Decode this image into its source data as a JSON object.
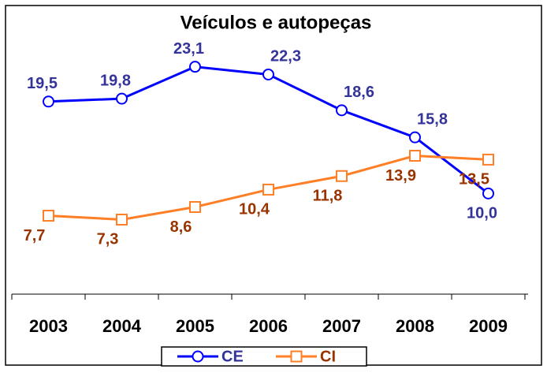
{
  "chart_data": {
    "type": "line",
    "title": "Veículos e autopeças",
    "categories": [
      "2003",
      "2004",
      "2005",
      "2006",
      "2007",
      "2008",
      "2009"
    ],
    "ylim": [
      0,
      30
    ],
    "series": [
      {
        "name": "CE",
        "color": "#0000ff",
        "label_color": "#333399",
        "marker": "circle",
        "values": [
          19.5,
          19.8,
          23.1,
          22.3,
          18.6,
          15.8,
          10.0
        ],
        "value_labels": [
          "19,5",
          "19,8",
          "23,1",
          "22,3",
          "18,6",
          "15,8",
          "10,0"
        ]
      },
      {
        "name": "CI",
        "color": "#ff7f27",
        "label_color": "#993300",
        "marker": "square",
        "values": [
          7.7,
          7.3,
          8.6,
          10.4,
          11.8,
          13.9,
          13.5
        ],
        "value_labels": [
          "7,7",
          "7,3",
          "8,6",
          "10,4",
          "11,8",
          "13,9",
          "13,5"
        ]
      }
    ]
  }
}
